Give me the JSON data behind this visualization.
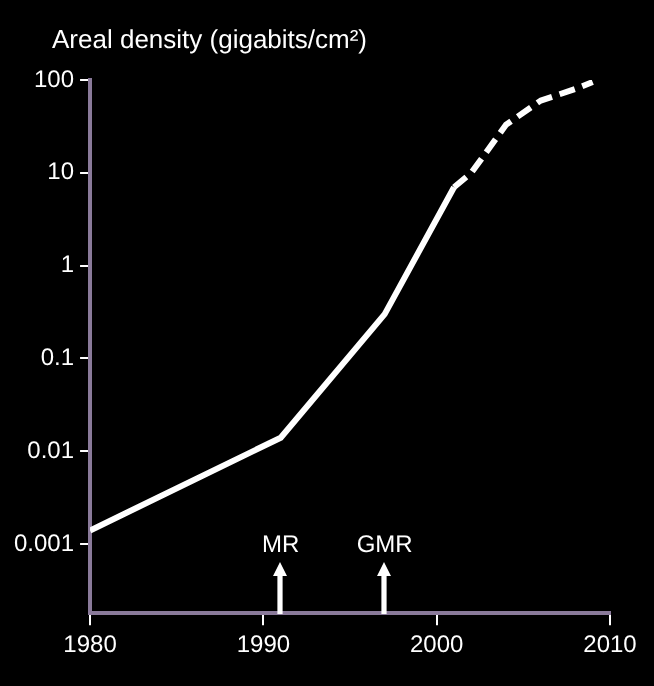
{
  "chart_data": {
    "type": "line",
    "ylabel": "Areal density (gigabits/cm²)",
    "series": [
      {
        "color": "#ffffff",
        "line_style": "solid",
        "x": [
          1980,
          1991,
          1997,
          2001
        ],
        "values": [
          0.0014,
          0.014,
          0.3,
          7
        ]
      },
      {
        "color": "#ffffff",
        "line_style": "dashed",
        "x": [
          2001,
          2002,
          2004,
          2006,
          2008,
          2009
        ],
        "values": [
          7,
          10,
          33,
          60,
          80,
          95
        ]
      }
    ],
    "xlim": [
      1980,
      2010
    ],
    "xticks": [
      1980,
      1990,
      2000,
      2010
    ],
    "ylim": [
      0.00018,
      100
    ],
    "yticks": [
      0.001,
      0.01,
      0.1,
      1,
      10,
      100
    ],
    "log": "y",
    "grid": false,
    "legend": false,
    "marker": "none",
    "annotations": [
      "MR",
      "GMR"
    ]
  }
}
